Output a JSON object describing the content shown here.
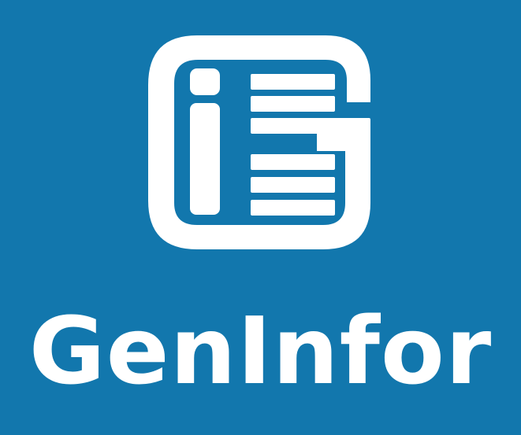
{
  "colors": {
    "background": "#1277ad",
    "foreground": "#ffffff"
  },
  "logo": {
    "icon": "gi-document-logo-icon",
    "wordmark": "GenInfor"
  }
}
